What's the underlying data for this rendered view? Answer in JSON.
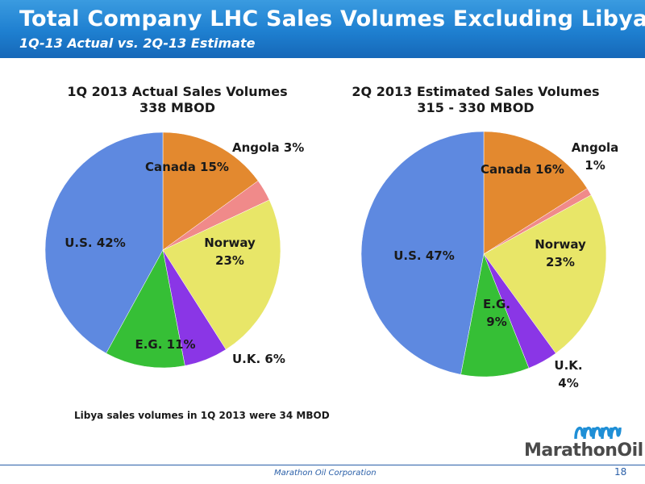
{
  "header": {
    "title": "Total Company LHC Sales Volumes Excluding Libya",
    "subtitle": "1Q-13 Actual  vs. 2Q-13 Estimate"
  },
  "chart_data": [
    {
      "type": "pie",
      "title_line1": "1Q 2013 Actual Sales Volumes",
      "title_line2": "338 MBOD",
      "slices": [
        {
          "label": "Canada 15%",
          "name": "Canada",
          "value": 15,
          "color": "#e3892f"
        },
        {
          "label": "Angola 3%",
          "name": "Angola",
          "value": 3,
          "color": "#f08a8a"
        },
        {
          "label": "Norway 23%",
          "name": "Norway",
          "value": 23,
          "color": "#e8e668"
        },
        {
          "label": "U.K. 6%",
          "name": "U.K.",
          "value": 6,
          "color": "#8a36e6"
        },
        {
          "label": "E.G. 11%",
          "name": "E.G.",
          "value": 11,
          "color": "#36bf36"
        },
        {
          "label": "U.S. 42%",
          "name": "U.S.",
          "value": 42,
          "color": "#5e89e0"
        }
      ]
    },
    {
      "type": "pie",
      "title_line1": "2Q 2013 Estimated Sales Volumes",
      "title_line2": "315 - 330 MBOD",
      "slices": [
        {
          "label": "Canada 16%",
          "name": "Canada",
          "value": 16,
          "color": "#e3892f"
        },
        {
          "label": "Angola 1%",
          "name": "Angola",
          "value": 1,
          "color": "#f08a8a"
        },
        {
          "label": "Norway 23%",
          "name": "Norway",
          "value": 23,
          "color": "#e8e668"
        },
        {
          "label": "U.K. 4%",
          "name": "U.K.",
          "value": 4,
          "color": "#8a36e6"
        },
        {
          "label": "E.G. 9%",
          "name": "E.G.",
          "value": 9,
          "color": "#36bf36"
        },
        {
          "label": "U.S. 47%",
          "name": "U.S.",
          "value": 47,
          "color": "#5e89e0"
        }
      ]
    }
  ],
  "note": "Libya sales volumes in 1Q 2013 were 34 MBOD",
  "footer": {
    "company": "Marathon Oil Corporation",
    "page": "18"
  },
  "logo": {
    "text": "MarathonOil",
    "color": "#1f8fd6"
  }
}
